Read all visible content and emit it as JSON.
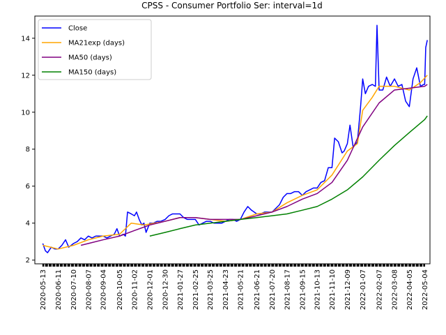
{
  "chart_data": {
    "type": "line",
    "title": "CPSS - Consumer Portfolio Ser: interval=1d",
    "xlabel": "",
    "ylabel": "",
    "x_range": [
      "2020-04-28",
      "2022-05-14"
    ],
    "ylim": [
      1.8,
      15.2
    ],
    "y_ticks": [
      2,
      4,
      6,
      8,
      10,
      12,
      14
    ],
    "x_ticks": [
      "2020-05-13",
      "2020-06-11",
      "2020-07-10",
      "2020-08-07",
      "2020-09-04",
      "2020-10-05",
      "2020-11-02",
      "2020-12-01",
      "2020-12-30",
      "2021-01-27",
      "2021-02-25",
      "2021-03-25",
      "2021-04-23",
      "2021-05-21",
      "2021-06-21",
      "2021-07-20",
      "2021-08-17",
      "2021-09-15",
      "2021-10-13",
      "2021-11-10",
      "2021-12-09",
      "2022-01-07",
      "2022-02-07",
      "2022-03-08",
      "2022-04-05",
      "2022-05-04"
    ],
    "grid": false,
    "legend_position": "top-left",
    "series": [
      {
        "name": "Close",
        "color": "#0000ff",
        "points": [
          [
            "2020-05-13",
            2.9
          ],
          [
            "2020-05-18",
            2.5
          ],
          [
            "2020-05-22",
            2.4
          ],
          [
            "2020-05-29",
            2.7
          ],
          [
            "2020-06-05",
            2.6
          ],
          [
            "2020-06-11",
            2.6
          ],
          [
            "2020-06-18",
            2.8
          ],
          [
            "2020-06-25",
            3.1
          ],
          [
            "2020-07-01",
            2.7
          ],
          [
            "2020-07-10",
            2.9
          ],
          [
            "2020-07-17",
            3.0
          ],
          [
            "2020-07-24",
            3.2
          ],
          [
            "2020-07-31",
            3.1
          ],
          [
            "2020-08-07",
            3.3
          ],
          [
            "2020-08-14",
            3.2
          ],
          [
            "2020-08-21",
            3.3
          ],
          [
            "2020-08-28",
            3.3
          ],
          [
            "2020-09-04",
            3.3
          ],
          [
            "2020-09-11",
            3.2
          ],
          [
            "2020-09-18",
            3.3
          ],
          [
            "2020-09-25",
            3.4
          ],
          [
            "2020-09-30",
            3.7
          ],
          [
            "2020-10-05",
            3.3
          ],
          [
            "2020-10-12",
            3.4
          ],
          [
            "2020-10-16",
            3.3
          ],
          [
            "2020-10-20",
            4.6
          ],
          [
            "2020-10-27",
            4.5
          ],
          [
            "2020-11-02",
            4.4
          ],
          [
            "2020-11-06",
            4.6
          ],
          [
            "2020-11-11",
            4.2
          ],
          [
            "2020-11-16",
            3.9
          ],
          [
            "2020-11-20",
            4.0
          ],
          [
            "2020-11-24",
            3.5
          ],
          [
            "2020-12-01",
            4.0
          ],
          [
            "2020-12-08",
            4.0
          ],
          [
            "2020-12-15",
            4.1
          ],
          [
            "2020-12-22",
            4.1
          ],
          [
            "2020-12-30",
            4.2
          ],
          [
            "2021-01-06",
            4.4
          ],
          [
            "2021-01-13",
            4.5
          ],
          [
            "2021-01-20",
            4.5
          ],
          [
            "2021-01-27",
            4.5
          ],
          [
            "2021-02-03",
            4.3
          ],
          [
            "2021-02-10",
            4.2
          ],
          [
            "2021-02-17",
            4.2
          ],
          [
            "2021-02-25",
            4.2
          ],
          [
            "2021-03-04",
            3.9
          ],
          [
            "2021-03-11",
            4.0
          ],
          [
            "2021-03-18",
            4.1
          ],
          [
            "2021-03-25",
            4.1
          ],
          [
            "2021-04-01",
            4.0
          ],
          [
            "2021-04-09",
            4.0
          ],
          [
            "2021-04-16",
            4.0
          ],
          [
            "2021-04-23",
            4.1
          ],
          [
            "2021-04-30",
            4.2
          ],
          [
            "2021-05-07",
            4.2
          ],
          [
            "2021-05-14",
            4.1
          ],
          [
            "2021-05-21",
            4.2
          ],
          [
            "2021-05-28",
            4.6
          ],
          [
            "2021-06-04",
            4.9
          ],
          [
            "2021-06-11",
            4.7
          ],
          [
            "2021-06-21",
            4.5
          ],
          [
            "2021-06-28",
            4.5
          ],
          [
            "2021-07-06",
            4.6
          ],
          [
            "2021-07-13",
            4.6
          ],
          [
            "2021-07-20",
            4.6
          ],
          [
            "2021-07-27",
            4.8
          ],
          [
            "2021-08-03",
            5.0
          ],
          [
            "2021-08-10",
            5.4
          ],
          [
            "2021-08-17",
            5.6
          ],
          [
            "2021-08-24",
            5.6
          ],
          [
            "2021-08-31",
            5.7
          ],
          [
            "2021-09-08",
            5.7
          ],
          [
            "2021-09-15",
            5.5
          ],
          [
            "2021-09-22",
            5.7
          ],
          [
            "2021-09-29",
            5.8
          ],
          [
            "2021-10-06",
            5.9
          ],
          [
            "2021-10-13",
            5.9
          ],
          [
            "2021-10-20",
            6.2
          ],
          [
            "2021-10-27",
            6.3
          ],
          [
            "2021-11-03",
            7.0
          ],
          [
            "2021-11-10",
            7.0
          ],
          [
            "2021-11-15",
            8.6
          ],
          [
            "2021-11-22",
            8.4
          ],
          [
            "2021-11-29",
            7.8
          ],
          [
            "2021-12-03",
            7.9
          ],
          [
            "2021-12-09",
            8.3
          ],
          [
            "2021-12-14",
            9.3
          ],
          [
            "2021-12-20",
            8.1
          ],
          [
            "2021-12-28",
            8.4
          ],
          [
            "2022-01-03",
            10.3
          ],
          [
            "2022-01-07",
            11.8
          ],
          [
            "2022-01-12",
            11.0
          ],
          [
            "2022-01-18",
            11.4
          ],
          [
            "2022-01-25",
            11.5
          ],
          [
            "2022-01-31",
            11.4
          ],
          [
            "2022-02-03",
            14.7
          ],
          [
            "2022-02-07",
            11.2
          ],
          [
            "2022-02-14",
            11.2
          ],
          [
            "2022-02-21",
            11.9
          ],
          [
            "2022-02-28",
            11.4
          ],
          [
            "2022-03-08",
            11.8
          ],
          [
            "2022-03-15",
            11.4
          ],
          [
            "2022-03-22",
            11.5
          ],
          [
            "2022-03-29",
            10.6
          ],
          [
            "2022-04-05",
            10.3
          ],
          [
            "2022-04-12",
            11.8
          ],
          [
            "2022-04-19",
            12.4
          ],
          [
            "2022-04-26",
            11.4
          ],
          [
            "2022-05-02",
            11.5
          ],
          [
            "2022-05-04",
            11.5
          ],
          [
            "2022-05-06",
            13.5
          ],
          [
            "2022-05-09",
            13.9
          ]
        ]
      },
      {
        "name": "MA21exp (days)",
        "color": "#ffa500",
        "points": [
          [
            "2020-05-13",
            2.8
          ],
          [
            "2020-06-11",
            2.6
          ],
          [
            "2020-07-10",
            2.8
          ],
          [
            "2020-08-07",
            3.1
          ],
          [
            "2020-09-04",
            3.3
          ],
          [
            "2020-10-05",
            3.4
          ],
          [
            "2020-10-27",
            4.0
          ],
          [
            "2020-11-20",
            3.9
          ],
          [
            "2020-12-30",
            4.1
          ],
          [
            "2021-01-27",
            4.3
          ],
          [
            "2021-02-25",
            4.3
          ],
          [
            "2021-03-25",
            4.2
          ],
          [
            "2021-04-23",
            4.1
          ],
          [
            "2021-05-21",
            4.2
          ],
          [
            "2021-06-21",
            4.5
          ],
          [
            "2021-07-20",
            4.6
          ],
          [
            "2021-08-17",
            5.1
          ],
          [
            "2021-09-15",
            5.5
          ],
          [
            "2021-10-13",
            5.8
          ],
          [
            "2021-11-10",
            6.6
          ],
          [
            "2021-12-09",
            7.9
          ],
          [
            "2021-12-28",
            8.3
          ],
          [
            "2022-01-07",
            10.1
          ],
          [
            "2022-01-25",
            10.8
          ],
          [
            "2022-02-07",
            11.4
          ],
          [
            "2022-03-08",
            11.4
          ],
          [
            "2022-04-05",
            11.2
          ],
          [
            "2022-04-26",
            11.6
          ],
          [
            "2022-05-09",
            12.0
          ]
        ]
      },
      {
        "name": "MA50 (days)",
        "color": "#800080",
        "points": [
          [
            "2020-07-24",
            2.8
          ],
          [
            "2020-08-07",
            2.9
          ],
          [
            "2020-09-04",
            3.1
          ],
          [
            "2020-10-05",
            3.3
          ],
          [
            "2020-11-02",
            3.6
          ],
          [
            "2020-12-01",
            3.9
          ],
          [
            "2020-12-30",
            4.1
          ],
          [
            "2021-01-27",
            4.3
          ],
          [
            "2021-02-25",
            4.3
          ],
          [
            "2021-03-25",
            4.2
          ],
          [
            "2021-04-23",
            4.2
          ],
          [
            "2021-05-21",
            4.2
          ],
          [
            "2021-06-21",
            4.4
          ],
          [
            "2021-07-20",
            4.6
          ],
          [
            "2021-08-17",
            4.9
          ],
          [
            "2021-09-15",
            5.3
          ],
          [
            "2021-10-13",
            5.6
          ],
          [
            "2021-11-10",
            6.2
          ],
          [
            "2021-12-09",
            7.4
          ],
          [
            "2022-01-07",
            9.2
          ],
          [
            "2022-02-07",
            10.5
          ],
          [
            "2022-03-08",
            11.2
          ],
          [
            "2022-04-05",
            11.3
          ],
          [
            "2022-05-04",
            11.4
          ],
          [
            "2022-05-09",
            11.5
          ]
        ]
      },
      {
        "name": "MA150 (days)",
        "color": "#008000",
        "points": [
          [
            "2020-12-01",
            3.3
          ],
          [
            "2020-12-30",
            3.5
          ],
          [
            "2021-01-27",
            3.7
          ],
          [
            "2021-02-25",
            3.9
          ],
          [
            "2021-03-25",
            4.0
          ],
          [
            "2021-04-23",
            4.1
          ],
          [
            "2021-05-21",
            4.2
          ],
          [
            "2021-06-21",
            4.3
          ],
          [
            "2021-07-20",
            4.4
          ],
          [
            "2021-08-17",
            4.5
          ],
          [
            "2021-09-15",
            4.7
          ],
          [
            "2021-10-13",
            4.9
          ],
          [
            "2021-11-10",
            5.3
          ],
          [
            "2021-12-09",
            5.8
          ],
          [
            "2022-01-07",
            6.5
          ],
          [
            "2022-02-07",
            7.4
          ],
          [
            "2022-03-08",
            8.2
          ],
          [
            "2022-04-05",
            8.9
          ],
          [
            "2022-05-04",
            9.6
          ],
          [
            "2022-05-09",
            9.8
          ]
        ]
      }
    ]
  }
}
